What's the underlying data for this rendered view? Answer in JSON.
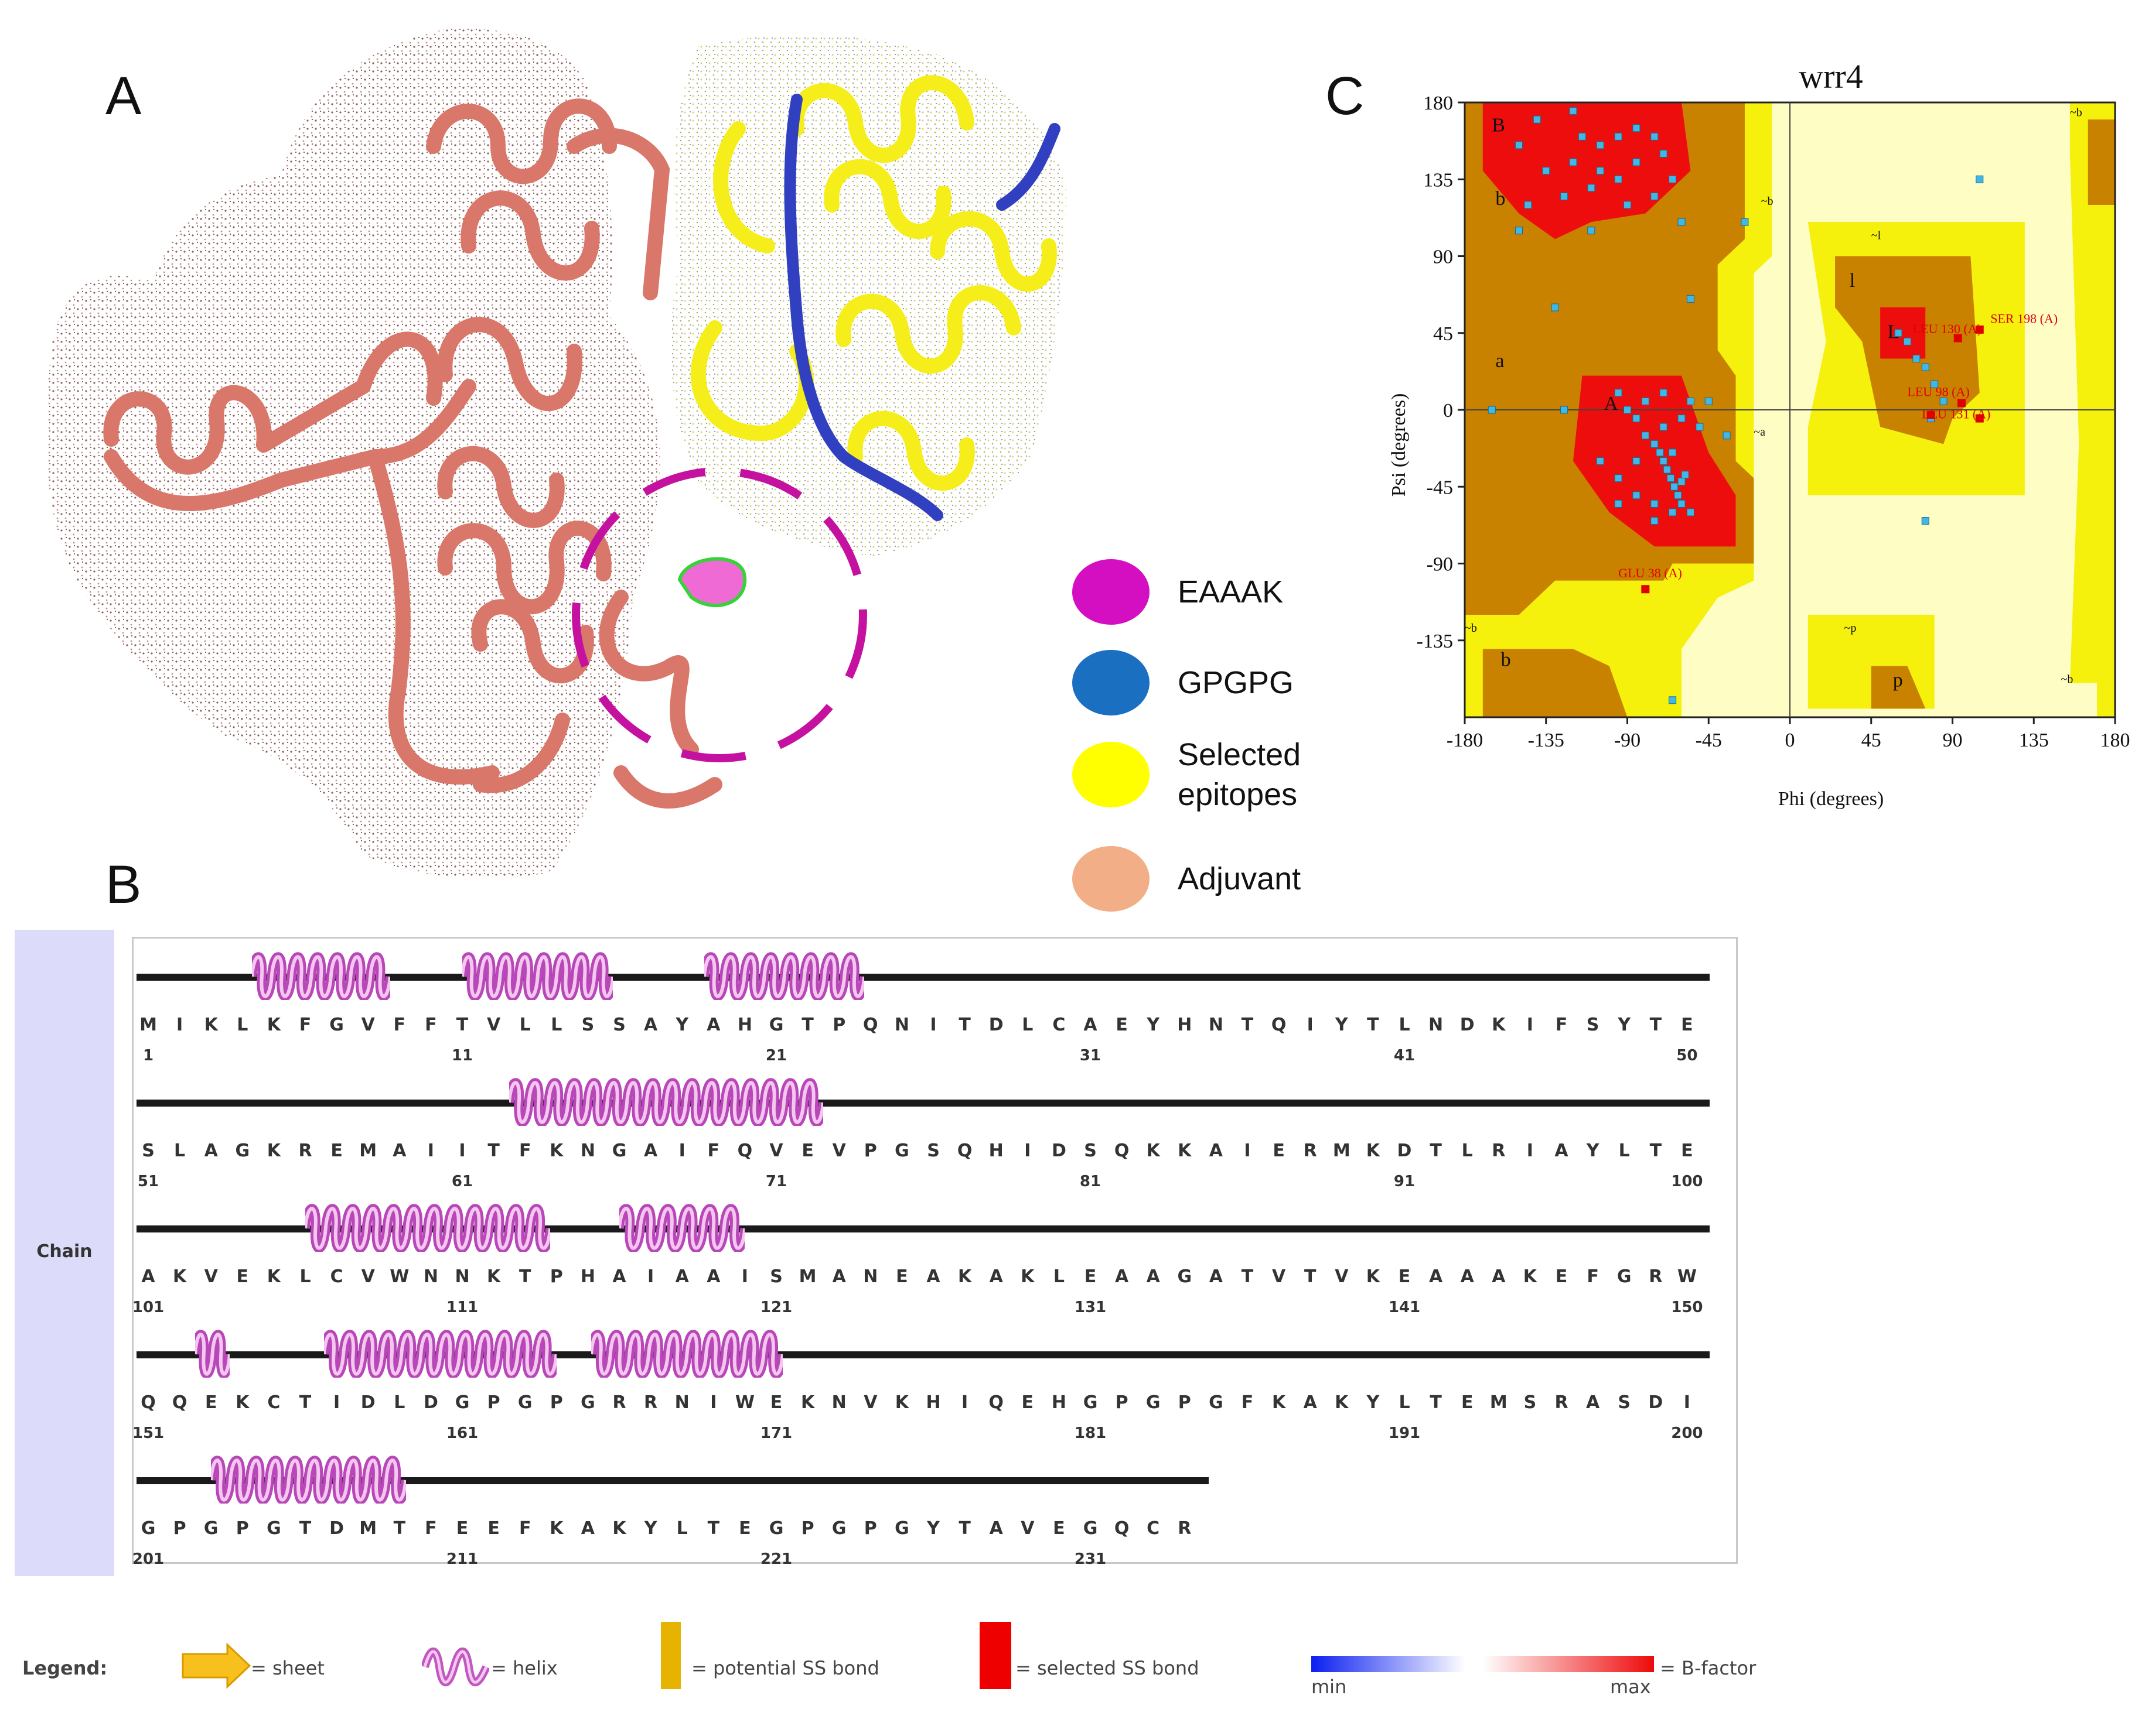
{
  "panels": {
    "a": "A",
    "b": "B",
    "c": "C"
  },
  "legend_a": [
    {
      "label": "EAAAK",
      "color": "#d40fc1"
    },
    {
      "label": "GPGPG",
      "color": "#1a6fc0"
    },
    {
      "label": "Selected epitopes",
      "color": "#ffff00"
    },
    {
      "label": "Adjuvant",
      "color": "#f2ae86"
    }
  ],
  "ramachandran": {
    "title": "wrr4",
    "xlabel": "Phi (degrees)",
    "ylabel": "Psi (degrees)",
    "xticks": [
      "-180",
      "-135",
      "-90",
      "-45",
      "0",
      "45",
      "90",
      "135",
      "180"
    ],
    "yticks": [
      "180",
      "135",
      "90",
      "45",
      "0",
      "-45",
      "-90",
      "-135"
    ],
    "region_labels": [
      "B",
      "b",
      "a",
      "A",
      "L",
      "l",
      "p",
      "~b",
      "~l",
      "~a",
      "~p",
      "~b",
      "~b",
      "~b",
      "b"
    ],
    "outlier_labels": [
      "SER 198 (A)",
      "LEU 130 (A)",
      "LEU 98 (A)",
      "LEU 131 (A)",
      "GLU 38 (A)"
    ]
  },
  "chart_data": {
    "type": "scatter",
    "title": "wrr4",
    "xlabel": "Phi (degrees)",
    "ylabel": "Psi (degrees)",
    "xlim": [
      -180,
      180
    ],
    "ylim": [
      -180,
      180
    ],
    "series": [
      {
        "values": [
          [
            -150,
            155
          ],
          [
            -140,
            170
          ],
          [
            -120,
            175
          ],
          [
            -115,
            160
          ],
          [
            -105,
            155
          ],
          [
            -95,
            160
          ],
          [
            -85,
            165
          ],
          [
            -75,
            160
          ],
          [
            -135,
            140
          ],
          [
            -120,
            145
          ],
          [
            -105,
            140
          ],
          [
            -95,
            135
          ],
          [
            -85,
            145
          ],
          [
            -70,
            150
          ],
          [
            -145,
            120
          ],
          [
            -125,
            125
          ],
          [
            -110,
            130
          ],
          [
            -90,
            120
          ],
          [
            -75,
            125
          ],
          [
            -65,
            135
          ],
          [
            -150,
            105
          ],
          [
            -110,
            105
          ],
          [
            -60,
            110
          ],
          [
            -25,
            110
          ],
          [
            -130,
            60
          ],
          [
            -55,
            65
          ],
          [
            -165,
            0
          ],
          [
            -125,
            0
          ],
          [
            -95,
            10
          ],
          [
            -85,
            -5
          ],
          [
            -80,
            -15
          ],
          [
            -75,
            -20
          ],
          [
            -72,
            -25
          ],
          [
            -70,
            -30
          ],
          [
            -68,
            -35
          ],
          [
            -66,
            -40
          ],
          [
            -64,
            -45
          ],
          [
            -62,
            -50
          ],
          [
            -60,
            -42
          ],
          [
            -58,
            -38
          ],
          [
            -65,
            -25
          ],
          [
            -70,
            -10
          ],
          [
            -60,
            -5
          ],
          [
            -55,
            5
          ],
          [
            -50,
            -10
          ],
          [
            -105,
            -30
          ],
          [
            -95,
            -40
          ],
          [
            -85,
            -50
          ],
          [
            -75,
            -55
          ],
          [
            -60,
            -55
          ],
          [
            -55,
            -60
          ],
          [
            -90,
            0
          ],
          [
            -80,
            5
          ],
          [
            -70,
            10
          ],
          [
            -65,
            -60
          ],
          [
            -85,
            -30
          ],
          [
            -45,
            5
          ],
          [
            -35,
            -15
          ],
          [
            -75,
            -65
          ],
          [
            -95,
            -55
          ],
          [
            60,
            45
          ],
          [
            65,
            40
          ],
          [
            70,
            30
          ],
          [
            75,
            25
          ],
          [
            80,
            15
          ],
          [
            85,
            5
          ],
          [
            78,
            -5
          ],
          [
            75,
            -65
          ],
          [
            105,
            135
          ],
          [
            -65,
            -170
          ]
        ]
      },
      {
        "values": [
          [
            105,
            47
          ],
          [
            93,
            42
          ],
          [
            78,
            -3
          ],
          [
            95,
            4
          ],
          [
            105,
            -5
          ],
          [
            -80,
            -105
          ]
        ]
      }
    ]
  },
  "sequence": {
    "chain_label": "Chain",
    "lines": [
      {
        "residues": "MIKLKFGVFFTVLLSSAYAHGTPQNITDLCAEYHNTQIYTLNDKIFSYTE",
        "numbers": [
          "1",
          "11",
          "21",
          "31",
          "41",
          "50"
        ]
      },
      {
        "residues": "SLAGKREMAIITFKNGAIFQVEVPGSQHIDSQKKAIERMKDTLRIAYLTE",
        "numbers": [
          "51",
          "61",
          "71",
          "81",
          "91",
          "100"
        ]
      },
      {
        "residues": "AKVEKLCVWNNKTPHAIAAISMANEAKAKLEAAGATVTVKEAAAKEFGRW",
        "numbers": [
          "101",
          "111",
          "121",
          "131",
          "141",
          "150"
        ]
      },
      {
        "residues": "QQEKCTIDLDGPGPGRRNIWEKNVKHIQEHGPGPGFKAKYLTEMSRASDI",
        "numbers": [
          "151",
          "161",
          "171",
          "181",
          "191",
          "200"
        ]
      },
      {
        "residues": "GPGPGTDMTFEEFKAKYLTEGPGPGYTAVEGQCR",
        "numbers": [
          "201",
          "211",
          "221",
          "231"
        ]
      }
    ]
  },
  "legend_b": {
    "title": "Legend:",
    "sheet": "= sheet",
    "helix": "= helix",
    "potential": "= potential SS bond",
    "selected": "= selected SS bond",
    "bfactor": "= B-factor",
    "min": "min",
    "max": "max"
  }
}
